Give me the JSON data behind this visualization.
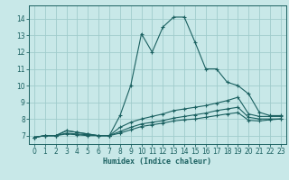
{
  "xlabel": "Humidex (Indice chaleur)",
  "bg_color": "#c8e8e8",
  "grid_color": "#a0cccc",
  "line_color": "#1a6060",
  "xlim": [
    -0.5,
    23.5
  ],
  "ylim": [
    6.5,
    14.8
  ],
  "xticks": [
    0,
    1,
    2,
    3,
    4,
    5,
    6,
    7,
    8,
    9,
    10,
    11,
    12,
    13,
    14,
    15,
    16,
    17,
    18,
    19,
    20,
    21,
    22,
    23
  ],
  "yticks": [
    7,
    8,
    9,
    10,
    11,
    12,
    13,
    14
  ],
  "series": [
    {
      "x": [
        0,
        1,
        2,
        3,
        4,
        5,
        6,
        7,
        8,
        9,
        10,
        11,
        12,
        13,
        14,
        15,
        16,
        17,
        18,
        19,
        20,
        21,
        22,
        23
      ],
      "y": [
        6.9,
        7.0,
        7.0,
        7.3,
        7.2,
        7.1,
        7.0,
        7.0,
        8.2,
        10.0,
        13.1,
        12.0,
        13.5,
        14.1,
        14.1,
        12.6,
        11.0,
        11.0,
        10.2,
        10.0,
        9.5,
        8.4,
        8.2,
        8.2
      ]
    },
    {
      "x": [
        0,
        1,
        2,
        3,
        4,
        5,
        6,
        7,
        8,
        9,
        10,
        11,
        12,
        13,
        14,
        15,
        16,
        17,
        18,
        19,
        20,
        21,
        22,
        23
      ],
      "y": [
        6.9,
        7.0,
        7.0,
        7.3,
        7.2,
        7.1,
        7.0,
        7.0,
        7.5,
        7.8,
        8.0,
        8.15,
        8.3,
        8.5,
        8.6,
        8.7,
        8.8,
        8.95,
        9.1,
        9.3,
        8.3,
        8.15,
        8.15,
        8.15
      ]
    },
    {
      "x": [
        0,
        1,
        2,
        3,
        4,
        5,
        6,
        7,
        8,
        9,
        10,
        11,
        12,
        13,
        14,
        15,
        16,
        17,
        18,
        19,
        20,
        21,
        22,
        23
      ],
      "y": [
        6.9,
        7.0,
        7.0,
        7.15,
        7.1,
        7.05,
        7.0,
        7.0,
        7.25,
        7.5,
        7.7,
        7.8,
        7.9,
        8.05,
        8.15,
        8.25,
        8.35,
        8.5,
        8.6,
        8.7,
        8.1,
        8.0,
        8.0,
        8.0
      ]
    },
    {
      "x": [
        0,
        1,
        2,
        3,
        4,
        5,
        6,
        7,
        8,
        9,
        10,
        11,
        12,
        13,
        14,
        15,
        16,
        17,
        18,
        19,
        20,
        21,
        22,
        23
      ],
      "y": [
        6.9,
        7.0,
        7.0,
        7.1,
        7.05,
        7.0,
        7.0,
        7.0,
        7.15,
        7.35,
        7.55,
        7.65,
        7.75,
        7.88,
        7.95,
        8.0,
        8.1,
        8.2,
        8.3,
        8.38,
        7.92,
        7.88,
        7.95,
        8.0
      ]
    }
  ]
}
